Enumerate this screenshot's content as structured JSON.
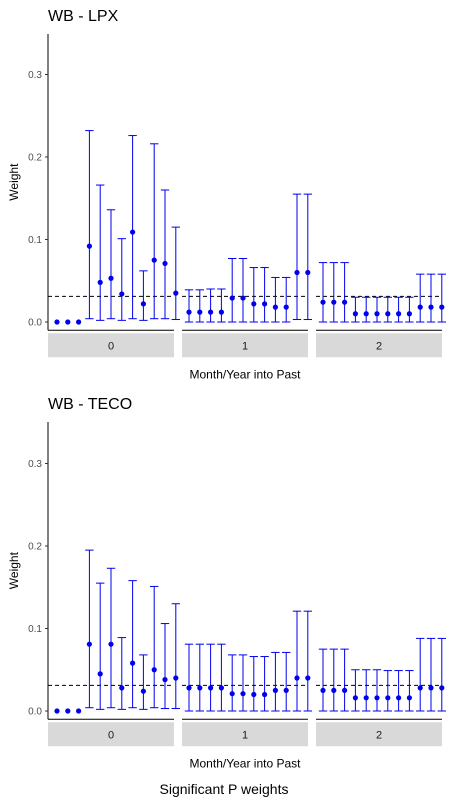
{
  "caption": "Significant P weights",
  "colors": {
    "points": "#0000ee",
    "strip": "#d9d9d9",
    "axis": "#000000",
    "reference": "#000000"
  },
  "chart_data": [
    {
      "type": "scatter",
      "title": "WB - LPX",
      "xlabel": "Month/Year into Past",
      "ylabel": "Weight",
      "ylim": [
        -0.01,
        0.345
      ],
      "yticks": [
        "0.0",
        "0.1",
        "0.2",
        "0.3"
      ],
      "yticks_values": [
        0,
        0.1,
        0.2,
        0.3
      ],
      "reference_line": 0.031,
      "grid": false,
      "facets": [
        {
          "label": "0",
          "estimates": [
            0.0,
            0.0,
            0.0,
            0.092,
            0.048,
            0.053,
            0.034,
            0.109,
            0.022,
            0.075,
            0.071,
            0.035
          ],
          "lower": [
            0.0,
            0.0,
            0.0,
            0.004,
            0.002,
            0.004,
            0.002,
            0.004,
            0.002,
            0.004,
            0.004,
            0.003
          ],
          "upper": [
            0.0,
            0.0,
            0.0,
            0.232,
            0.166,
            0.136,
            0.101,
            0.226,
            0.062,
            0.216,
            0.16,
            0.115
          ]
        },
        {
          "label": "1",
          "estimates": [
            0.012,
            0.012,
            0.012,
            0.012,
            0.029,
            0.029,
            0.022,
            0.022,
            0.018,
            0.018,
            0.06,
            0.06
          ],
          "lower": [
            0.0,
            0.0,
            0.0,
            0.0,
            0.0,
            0.0,
            0.0,
            0.0,
            0.0,
            0.0,
            0.003,
            0.003
          ],
          "upper": [
            0.039,
            0.039,
            0.04,
            0.04,
            0.077,
            0.077,
            0.066,
            0.066,
            0.054,
            0.054,
            0.155,
            0.155
          ]
        },
        {
          "label": "2",
          "estimates": [
            0.024,
            0.024,
            0.024,
            0.01,
            0.01,
            0.01,
            0.01,
            0.01,
            0.01,
            0.018,
            0.018,
            0.018
          ],
          "lower": [
            0.0,
            0.0,
            0.0,
            0.0,
            0.0,
            0.0,
            0.0,
            0.0,
            0.0,
            0.0,
            0.0,
            0.0
          ],
          "upper": [
            0.072,
            0.072,
            0.072,
            0.03,
            0.03,
            0.03,
            0.03,
            0.03,
            0.03,
            0.058,
            0.058,
            0.058
          ]
        }
      ]
    },
    {
      "type": "scatter",
      "title": "WB - TECO",
      "xlabel": "Month/Year into Past",
      "ylabel": "Weight",
      "ylim": [
        -0.01,
        0.345
      ],
      "yticks": [
        "0.0",
        "0.1",
        "0.2",
        "0.3"
      ],
      "yticks_values": [
        0,
        0.1,
        0.2,
        0.3
      ],
      "reference_line": 0.031,
      "grid": false,
      "facets": [
        {
          "label": "0",
          "estimates": [
            0.0,
            0.0,
            0.0,
            0.081,
            0.045,
            0.081,
            0.028,
            0.058,
            0.024,
            0.05,
            0.038,
            0.04
          ],
          "lower": [
            0.0,
            0.0,
            0.0,
            0.004,
            0.002,
            0.004,
            0.002,
            0.004,
            0.002,
            0.004,
            0.003,
            0.003
          ],
          "upper": [
            0.0,
            0.0,
            0.0,
            0.195,
            0.155,
            0.173,
            0.089,
            0.158,
            0.068,
            0.151,
            0.106,
            0.13
          ]
        },
        {
          "label": "1",
          "estimates": [
            0.028,
            0.028,
            0.028,
            0.028,
            0.021,
            0.021,
            0.02,
            0.02,
            0.025,
            0.025,
            0.04,
            0.04
          ],
          "lower": [
            0.0,
            0.0,
            0.0,
            0.0,
            0.0,
            0.0,
            0.0,
            0.0,
            0.0,
            0.0,
            0.0,
            0.0
          ],
          "upper": [
            0.081,
            0.081,
            0.081,
            0.081,
            0.068,
            0.068,
            0.066,
            0.066,
            0.071,
            0.071,
            0.121,
            0.121
          ]
        },
        {
          "label": "2",
          "estimates": [
            0.025,
            0.025,
            0.025,
            0.016,
            0.016,
            0.016,
            0.016,
            0.016,
            0.016,
            0.028,
            0.028,
            0.028
          ],
          "lower": [
            0.0,
            0.0,
            0.0,
            0.0,
            0.0,
            0.0,
            0.0,
            0.0,
            0.0,
            0.0,
            0.0,
            0.0
          ],
          "upper": [
            0.075,
            0.075,
            0.075,
            0.05,
            0.05,
            0.05,
            0.049,
            0.049,
            0.049,
            0.088,
            0.088,
            0.088
          ]
        }
      ]
    }
  ]
}
